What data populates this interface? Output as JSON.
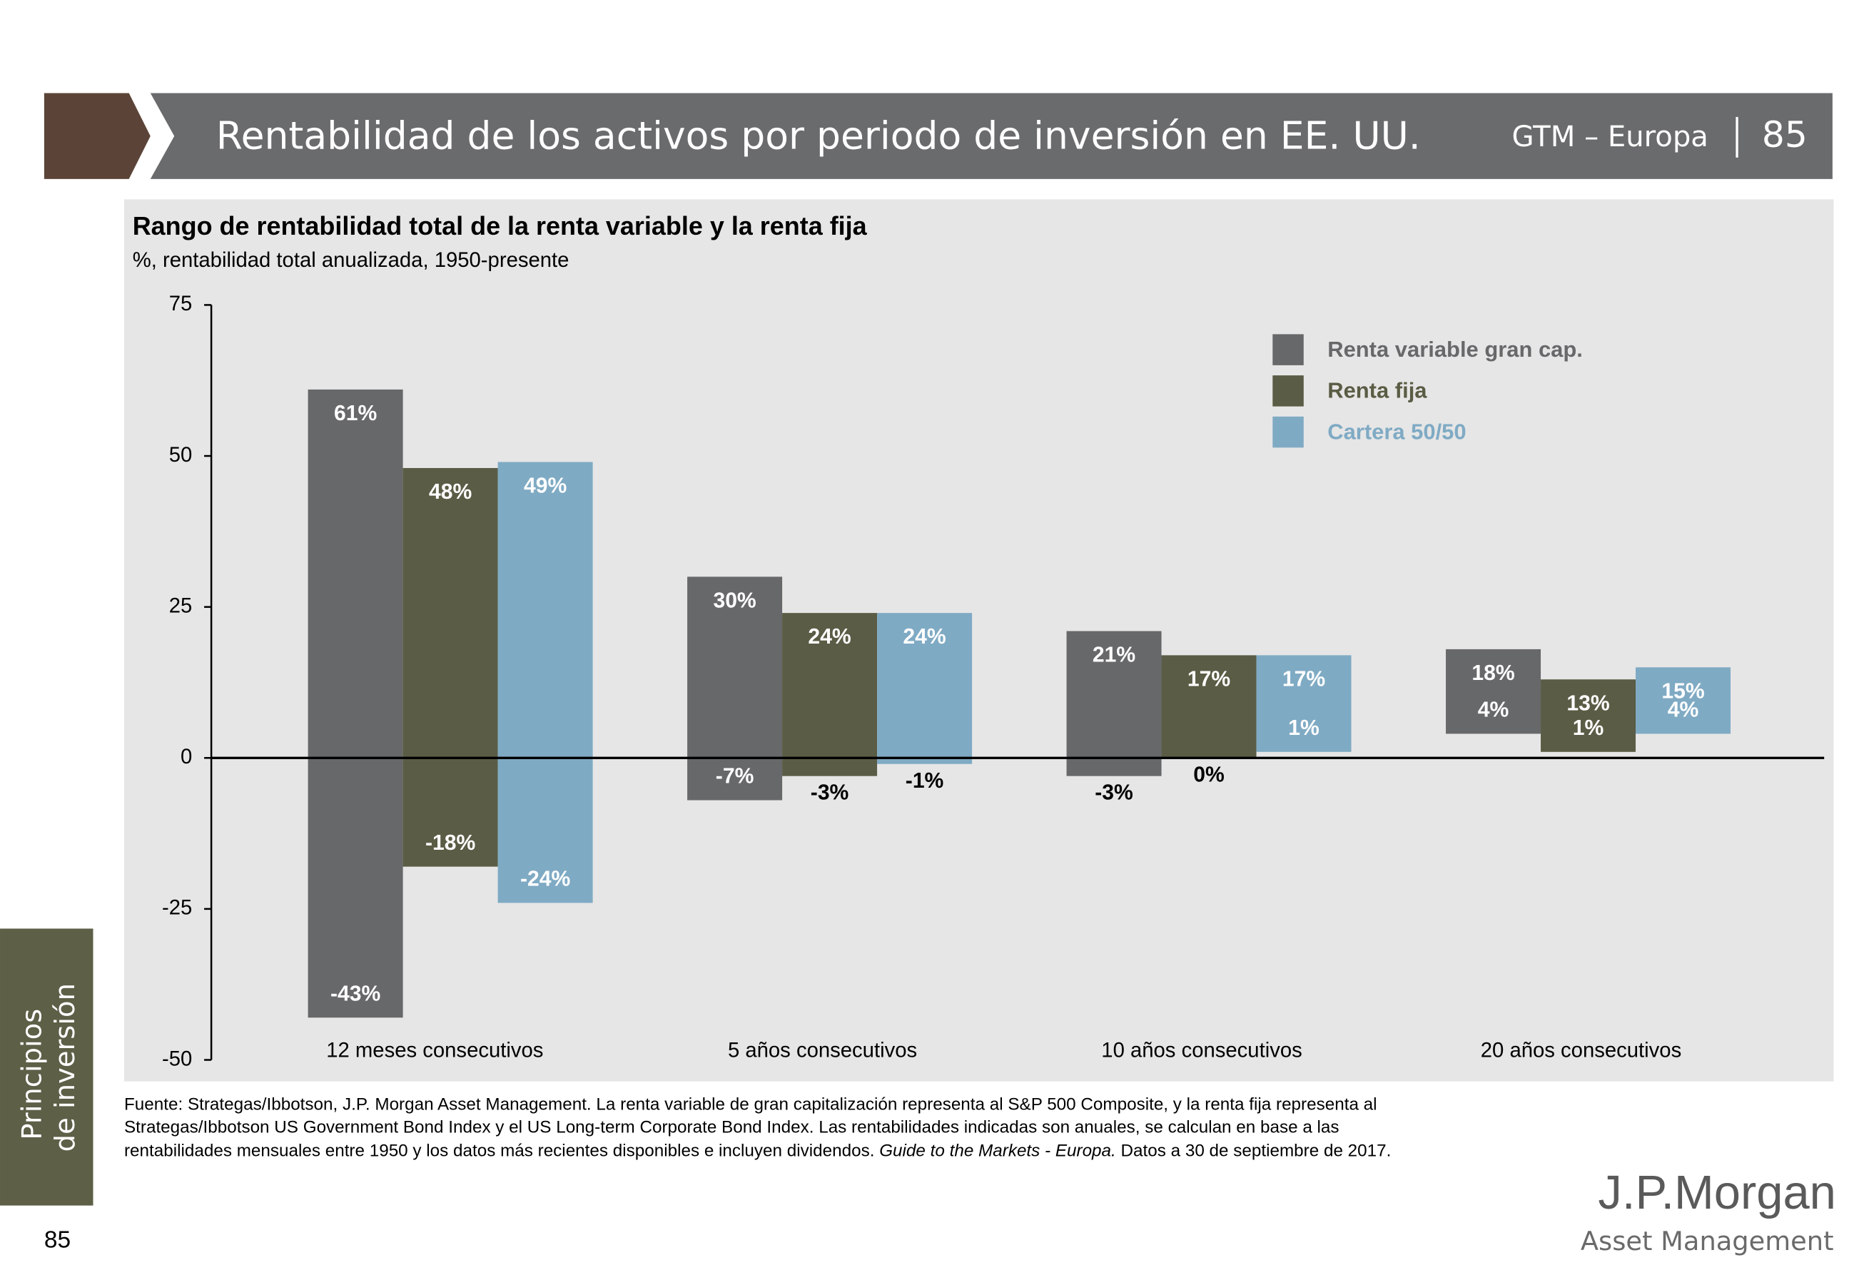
{
  "header": {
    "title": "Rentabilidad de los activos por periodo de inversión en EE. UU.",
    "section": "GTM – Europa",
    "page": "85"
  },
  "side_tab": [
    "Principios",
    "de inversión"
  ],
  "page_number": "85",
  "source": {
    "lines": [
      "Fuente: Strategas/Ibbotson, J.P. Morgan Asset Management. La renta variable de gran capitalización representa al S&P 500 Composite, y la renta fija representa al",
      "Strategas/Ibbotson US Government Bond Index y el US Long-term Corporate Bond Index. Las rentabilidades indicadas son anuales, se calculan en base a las",
      "rentabilidades mensuales entre 1950 y los datos más recientes disponibles e incluyen dividendos."
    ],
    "italic": "Guide to the Markets - Europa.",
    "end": "Datos a 30 de septiembre de 2017."
  },
  "logo": {
    "name": "J.P.Morgan",
    "sub": "Asset Management"
  },
  "chart_data": {
    "type": "range_bar",
    "title": "Rango de rentabilidad total de la renta variable y la renta fija",
    "subtitle": "%, rentabilidad total anualizada, 1950-presente",
    "categories": [
      "12 meses consecutivos",
      "5 años consecutivos",
      "10 años consecutivos",
      "20 años consecutivos"
    ],
    "series": [
      {
        "name": "Renta variable gran cap.",
        "color": "#67686a",
        "high": [
          61,
          30,
          21,
          18
        ],
        "low": [
          -43,
          -7,
          -3,
          4
        ],
        "high_labels": [
          "61%",
          "30%",
          "21%",
          "18%"
        ],
        "low_labels": [
          "-43%",
          "-7%",
          "-3%",
          "4%"
        ]
      },
      {
        "name": "Renta fija",
        "color": "#5a5c45",
        "high": [
          48,
          24,
          17,
          13
        ],
        "low": [
          -18,
          -3,
          0,
          1
        ],
        "high_labels": [
          "48%",
          "24%",
          "17%",
          "13%"
        ],
        "low_labels": [
          "-18%",
          "-3%",
          "0%",
          "1%"
        ]
      },
      {
        "name": "Cartera 50/50",
        "color": "#7faac4",
        "high": [
          49,
          24,
          17,
          15
        ],
        "low": [
          -24,
          -1,
          1,
          4
        ],
        "high_labels": [
          "49%",
          "24%",
          "17%",
          "15%"
        ],
        "low_labels": [
          "-24%",
          "-1%",
          "1%",
          "4%"
        ]
      }
    ],
    "ylim": [
      -50,
      75
    ],
    "yticks": [
      -50,
      -25,
      0,
      25,
      50,
      75
    ],
    "legend": "top-right"
  }
}
